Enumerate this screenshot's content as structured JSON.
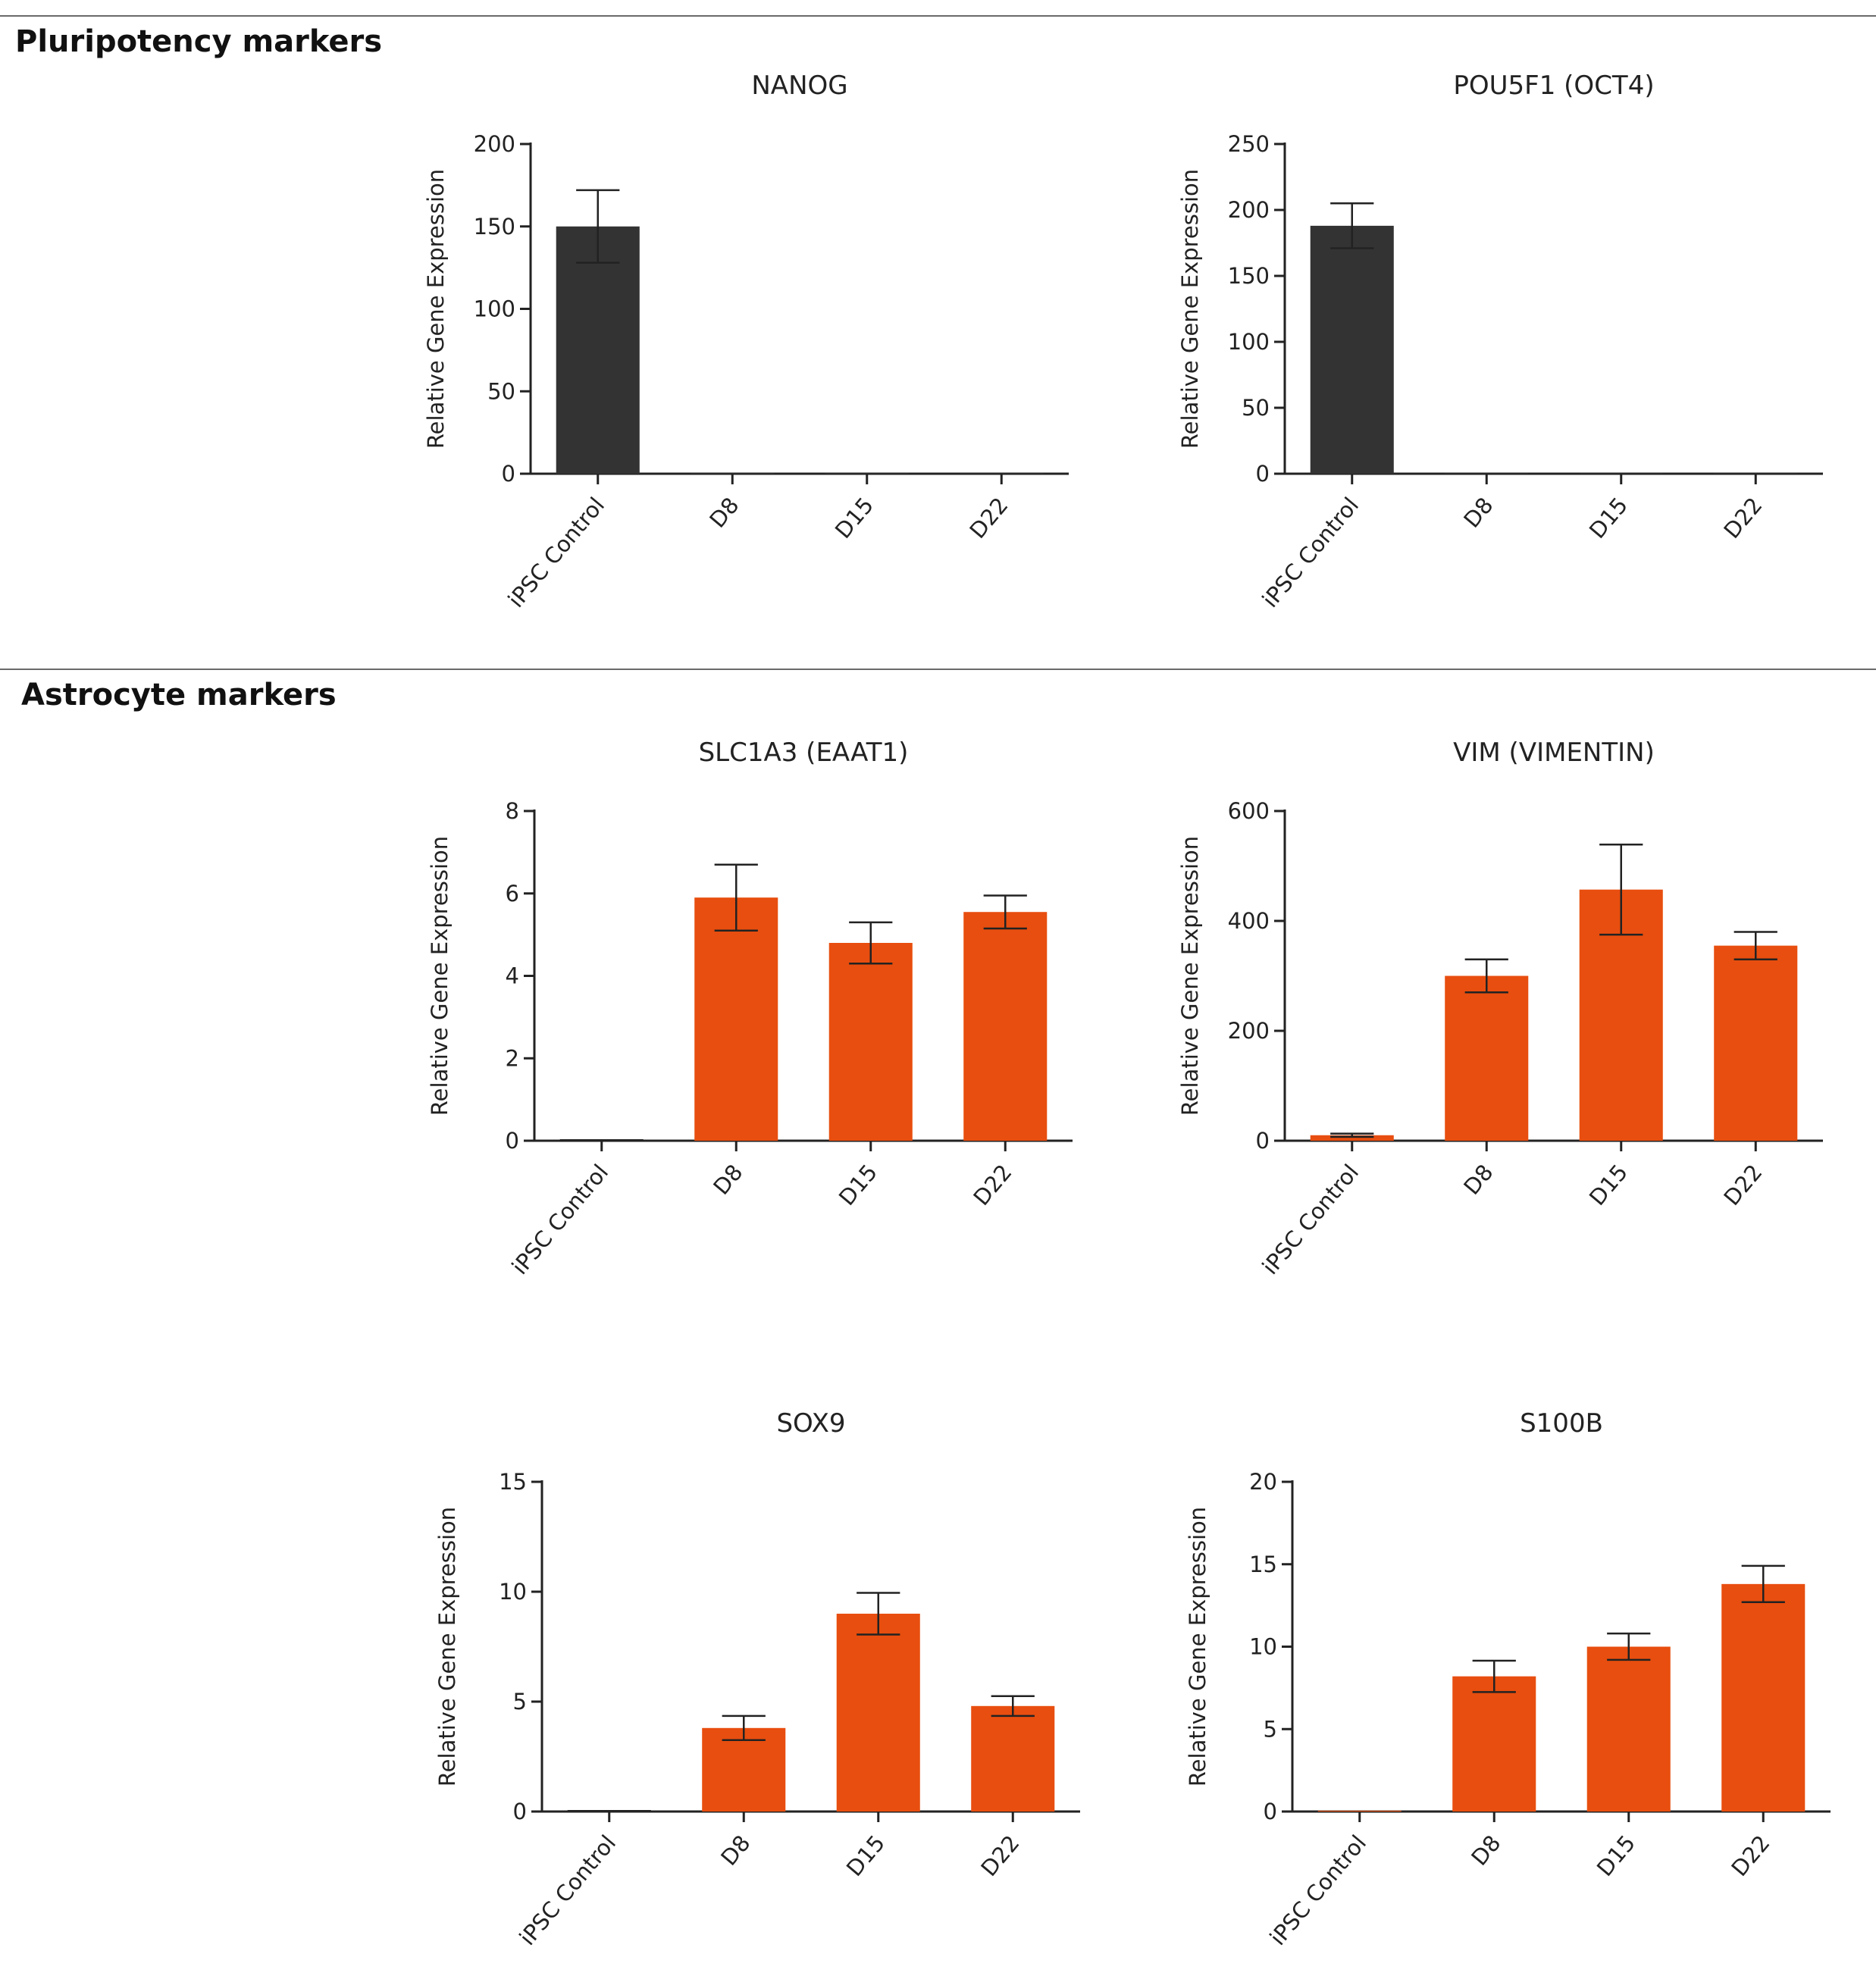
{
  "sections": {
    "pluripotency": {
      "title": "Pluripotency markers"
    },
    "astrocyte": {
      "title": "Astrocyte markers"
    }
  },
  "colors": {
    "pluripotency_bar": "#333333",
    "astrocyte_bar": "#e84e0f",
    "axis": "#222222"
  },
  "chart_data": [
    {
      "type": "bar",
      "title": "NANOG",
      "ylabel": "Relative Gene Expression",
      "xlabel": "",
      "categories": [
        "iPSC Control",
        "D8",
        "D15",
        "D22"
      ],
      "values": [
        150,
        0.3,
        0.3,
        0.3
      ],
      "error": [
        22,
        0,
        0,
        0
      ],
      "ylim": [
        0,
        200
      ],
      "yticks": [
        0,
        50,
        100,
        150,
        200
      ],
      "grid": false
    },
    {
      "type": "bar",
      "title": "POU5F1 (OCT4)",
      "ylabel": "Relative Gene Expression",
      "xlabel": "",
      "categories": [
        "iPSC Control",
        "D8",
        "D15",
        "D22"
      ],
      "values": [
        188,
        0.3,
        0.3,
        0.3
      ],
      "error": [
        17,
        0,
        0,
        0
      ],
      "ylim": [
        0,
        250
      ],
      "yticks": [
        0,
        50,
        100,
        150,
        200,
        250
      ],
      "grid": false
    },
    {
      "type": "bar",
      "title": "SLC1A3 (EAAT1)",
      "ylabel": "Relative Gene Expression",
      "xlabel": "",
      "categories": [
        "iPSC Control",
        "D8",
        "D15",
        "D22"
      ],
      "values": [
        0,
        5.9,
        4.8,
        5.55
      ],
      "error": [
        0,
        0.8,
        0.5,
        0.4
      ],
      "ylim": [
        0,
        8
      ],
      "yticks": [
        0,
        2,
        4,
        6,
        8
      ],
      "grid": false
    },
    {
      "type": "bar",
      "title": "VIM (VIMENTIN)",
      "ylabel": "Relative Gene Expression",
      "xlabel": "",
      "categories": [
        "iPSC Control",
        "D8",
        "D15",
        "D22"
      ],
      "values": [
        10,
        300,
        457,
        355
      ],
      "error": [
        3,
        30,
        82,
        25
      ],
      "ylim": [
        0,
        600
      ],
      "yticks": [
        0,
        200,
        400,
        600
      ],
      "grid": false
    },
    {
      "type": "bar",
      "title": "SOX9",
      "ylabel": "Relative Gene Expression",
      "xlabel": "",
      "categories": [
        "iPSC Control",
        "D8",
        "D15",
        "D22"
      ],
      "values": [
        0,
        3.8,
        9.0,
        4.8
      ],
      "error": [
        0,
        0.55,
        0.95,
        0.45
      ],
      "ylim": [
        0,
        15
      ],
      "yticks": [
        0,
        5,
        10,
        15
      ],
      "grid": false
    },
    {
      "type": "bar",
      "title": "S100B",
      "ylabel": "Relative Gene Expression",
      "xlabel": "",
      "categories": [
        "iPSC Control",
        "D8",
        "D15",
        "D22"
      ],
      "values": [
        0.05,
        8.2,
        10.0,
        13.8
      ],
      "error": [
        0,
        0.95,
        0.8,
        1.1
      ],
      "ylim": [
        0,
        20
      ],
      "yticks": [
        0,
        5,
        10,
        15,
        20
      ],
      "grid": false
    }
  ]
}
